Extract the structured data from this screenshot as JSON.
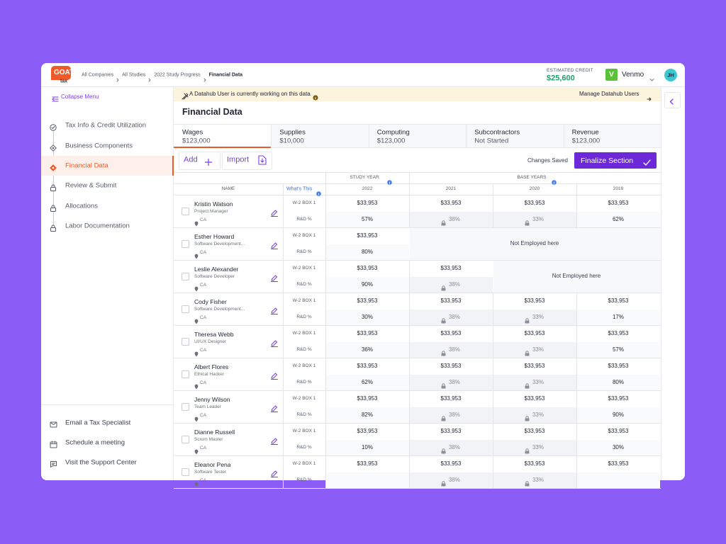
{
  "header": {
    "logo": {
      "brand": "GOAT",
      "sub": "tax"
    },
    "breadcrumbs": [
      "All Companies",
      "All Studies",
      "2022 Study Progress",
      "Financial Data"
    ],
    "credit": {
      "label": "ESTIMATED CREDIT",
      "value": "$25,600"
    },
    "account": {
      "badge": "V",
      "name": "Venmo"
    },
    "avatar": "JH"
  },
  "sidebar": {
    "collapse": "Collapse Menu",
    "steps": [
      {
        "label": "Tax Info & Credit Utilization",
        "status": "done"
      },
      {
        "label": "Business Components",
        "status": "open"
      },
      {
        "label": "Financial Data",
        "status": "active"
      },
      {
        "label": "Review & Submit",
        "status": "locked"
      },
      {
        "label": "Allocations",
        "status": "locked"
      },
      {
        "label": "Labor Documentation",
        "status": "locked"
      }
    ],
    "links": [
      "Email a Tax Specialist",
      "Schedule a meeting",
      "Visit the Support Center"
    ]
  },
  "banner": {
    "message": "A Datahub User is currently working on this data",
    "action": "Manage Datahub Users"
  },
  "page_title": "Financial Data",
  "tabs": [
    {
      "name": "Wages",
      "value": "$123,000",
      "active": true
    },
    {
      "name": "Supplies",
      "value": "$10,000"
    },
    {
      "name": "Computing",
      "value": "$123,000"
    },
    {
      "name": "Subcontractors",
      "value": "Not Started"
    },
    {
      "name": "Revenue",
      "value": "$123,000"
    }
  ],
  "toolbar": {
    "add": "Add",
    "import": "Import",
    "status": "Changes Saved",
    "finalize": "Finalize Section"
  },
  "table": {
    "groups": {
      "study": "STUDY YEAR",
      "base": "BASE YEARS"
    },
    "name_header": "NAME",
    "help": "What's This",
    "years": [
      "2022",
      "2021",
      "2020",
      "2019"
    ],
    "row_labels": [
      "W-2 BOX 1",
      "R&D %"
    ],
    "rows": [
      {
        "name": "Kristin Watson",
        "role": "Project Manager",
        "location": "CA",
        "cells": [
          {
            "wage": "$33,953",
            "rd": "57%"
          },
          {
            "wage": "$33,953",
            "rd": "38%",
            "locked": true
          },
          {
            "wage": "$33,953",
            "rd": "33%",
            "locked": true
          },
          {
            "wage": "$33,953",
            "rd": "62%"
          }
        ]
      },
      {
        "name": "Esther Howard",
        "role": "Software Development...",
        "location": "CA",
        "cells": [
          {
            "wage": "$33,953",
            "rd": "80%"
          },
          {
            "note": "Not Employed here"
          }
        ]
      },
      {
        "name": "Leslie Alexander",
        "role": "Software Developer",
        "location": "CA",
        "cells": [
          {
            "wage": "$33,953",
            "rd": "90%"
          },
          {
            "wage": "$33,953",
            "rd": "38%",
            "locked": true
          },
          {
            "note": "Not Employed here"
          }
        ]
      },
      {
        "name": "Cody Fisher",
        "role": "Software Development...",
        "location": "CA",
        "cells": [
          {
            "wage": "$33,953",
            "rd": "30%"
          },
          {
            "wage": "$33,953",
            "rd": "38%",
            "locked": true
          },
          {
            "wage": "$33,953",
            "rd": "33%",
            "locked": true
          },
          {
            "wage": "$33,953",
            "rd": "17%"
          }
        ]
      },
      {
        "name": "Theresa Webb",
        "role": "UI/UX Designer",
        "location": "CA",
        "cells": [
          {
            "wage": "$33,953",
            "rd": "36%"
          },
          {
            "wage": "$33,953",
            "rd": "38%",
            "locked": true
          },
          {
            "wage": "$33,953",
            "rd": "33%",
            "locked": true
          },
          {
            "wage": "$33,953",
            "rd": "57%"
          }
        ]
      },
      {
        "name": "Albert Flores",
        "role": "Ethical Hacker",
        "location": "CA",
        "cells": [
          {
            "wage": "$33,953",
            "rd": "62%"
          },
          {
            "wage": "$33,953",
            "rd": "38%",
            "locked": true
          },
          {
            "wage": "$33,953",
            "rd": "33%",
            "locked": true
          },
          {
            "wage": "$33,953",
            "rd": "80%"
          }
        ]
      },
      {
        "name": "Jenny Wilson",
        "role": "Team Leader",
        "location": "CA",
        "cells": [
          {
            "wage": "$33,953",
            "rd": "82%"
          },
          {
            "wage": "$33,953",
            "rd": "38%",
            "locked": true
          },
          {
            "wage": "$33,953",
            "rd": "33%",
            "locked": true
          },
          {
            "wage": "$33,953",
            "rd": "90%"
          }
        ]
      },
      {
        "name": "Dianne Russell",
        "role": "Scrum Master",
        "location": "CA",
        "cells": [
          {
            "wage": "$33,953",
            "rd": "10%"
          },
          {
            "wage": "$33,953",
            "rd": "38%",
            "locked": true
          },
          {
            "wage": "$33,953",
            "rd": "33%",
            "locked": true
          },
          {
            "wage": "$33,953",
            "rd": "30%"
          }
        ]
      },
      {
        "name": "Eleanor Pena",
        "role": "Software Tester",
        "location": "CA",
        "cells": [
          {
            "wage": "$33,953"
          },
          {
            "wage": "$33,953",
            "rd": "38%",
            "locked": true
          },
          {
            "wage": "$33,953",
            "rd": "33%",
            "locked": true
          },
          {
            "wage": "$33,953"
          }
        ]
      }
    ]
  }
}
